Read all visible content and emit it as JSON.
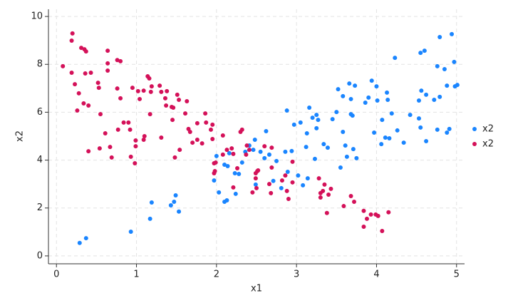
{
  "chart_data": {
    "type": "scatter",
    "xlabel": "x1",
    "ylabel": "x2",
    "xlim": [
      -0.1,
      5.1
    ],
    "ylim": [
      -0.33,
      10.3
    ],
    "xticks": [
      0,
      1,
      2,
      3,
      4,
      5
    ],
    "yticks": [
      0,
      2,
      4,
      6,
      8,
      10
    ],
    "grid": true,
    "legend": "right",
    "series": [
      {
        "name": "x2",
        "color": "#1a85ff",
        "x": [
          0.29,
          0.37,
          0.93,
          1.17,
          1.19,
          1.43,
          1.47,
          1.49,
          1.53,
          1.97,
          2.0,
          2.03,
          2.1,
          2.13,
          2.1,
          2.14,
          2.16,
          2.23,
          2.24,
          2.28,
          2.32,
          2.36,
          2.41,
          2.46,
          2.48,
          2.49,
          2.55,
          2.6,
          2.62,
          2.66,
          2.71,
          2.75,
          2.81,
          2.86,
          2.88,
          2.89,
          2.94,
          2.97,
          3.02,
          3.05,
          3.08,
          3.12,
          3.13,
          3.14,
          3.16,
          3.2,
          3.23,
          3.25,
          3.27,
          3.25,
          3.34,
          3.39,
          3.45,
          3.5,
          3.52,
          3.55,
          3.58,
          3.58,
          3.61,
          3.63,
          3.66,
          3.68,
          3.68,
          3.7,
          3.71,
          3.73,
          3.75,
          3.86,
          3.9,
          3.94,
          3.97,
          4.0,
          4.01,
          4.06,
          4.07,
          4.11,
          4.13,
          4.14,
          4.16,
          4.19,
          4.23,
          4.26,
          4.34,
          4.42,
          4.53,
          4.53,
          4.55,
          4.56,
          4.55,
          4.6,
          4.62,
          4.62,
          4.72,
          4.76,
          4.76,
          4.79,
          4.79,
          4.85,
          4.88,
          4.88,
          4.91,
          4.94,
          4.97,
          4.98,
          5.01
        ],
        "values": [
          0.54,
          0.74,
          1.01,
          1.55,
          2.23,
          2.11,
          2.26,
          2.53,
          1.85,
          3.15,
          4.17,
          2.65,
          2.26,
          2.32,
          3.81,
          3.75,
          4.29,
          3.45,
          2.59,
          3.42,
          3.9,
          4.35,
          4.61,
          4.43,
          4.85,
          2.98,
          4.35,
          4.08,
          5.21,
          4.23,
          3.13,
          3.96,
          2.83,
          4.35,
          6.07,
          3.51,
          4.38,
          5.48,
          3.36,
          5.57,
          2.95,
          4.55,
          5.12,
          3.24,
          6.19,
          5.77,
          4.05,
          5.89,
          5.68,
          5.33,
          4.67,
          4.52,
          5.71,
          6.01,
          6.96,
          3.69,
          6.67,
          5.18,
          4.61,
          4.14,
          7.2,
          6.55,
          5.92,
          5.86,
          4.46,
          7.11,
          4.08,
          6.4,
          6.61,
          7.32,
          5.15,
          7.08,
          6.49,
          4.67,
          5.68,
          4.94,
          6.82,
          6.52,
          4.91,
          5.95,
          8.27,
          5.24,
          4.73,
          5.89,
          6.49,
          5.74,
          8.48,
          6.9,
          5.36,
          8.57,
          6.73,
          4.79,
          6.52,
          7.92,
          5.27,
          9.14,
          6.64,
          7.8,
          7.11,
          5.15,
          5.3,
          9.26,
          8.1,
          7.08,
          7.14
        ]
      },
      {
        "name": "x2",
        "color": "#d41159",
        "x": [
          0.08,
          0.19,
          0.19,
          0.2,
          0.23,
          0.28,
          0.26,
          0.31,
          0.35,
          0.36,
          0.34,
          0.37,
          0.4,
          0.4,
          0.43,
          0.52,
          0.53,
          0.54,
          0.55,
          0.61,
          0.64,
          0.64,
          0.64,
          0.67,
          0.69,
          0.76,
          0.8,
          0.76,
          0.77,
          0.8,
          0.84,
          0.93,
          0.9,
          0.92,
          0.95,
          0.98,
          0.99,
          0.99,
          1.02,
          1.04,
          1.09,
          1.09,
          1.1,
          1.14,
          1.16,
          1.17,
          1.18,
          1.19,
          1.29,
          1.31,
          1.31,
          1.36,
          1.37,
          1.38,
          1.44,
          1.46,
          1.45,
          1.48,
          1.51,
          1.53,
          1.54,
          1.61,
          1.63,
          1.65,
          1.67,
          1.7,
          1.76,
          1.76,
          1.82,
          1.86,
          1.87,
          1.93,
          1.95,
          1.95,
          1.97,
          1.98,
          1.97,
          1.99,
          2.08,
          2.08,
          2.13,
          2.19,
          2.21,
          2.21,
          2.26,
          2.3,
          2.32,
          2.37,
          2.38,
          2.41,
          2.45,
          2.49,
          2.49,
          2.5,
          2.51,
          2.52,
          2.6,
          2.66,
          2.68,
          2.69,
          2.69,
          2.82,
          2.86,
          2.88,
          2.9,
          2.95,
          2.95,
          3.28,
          3.3,
          3.3,
          3.33,
          3.35,
          3.38,
          3.4,
          3.43,
          3.59,
          3.68,
          3.72,
          3.84,
          3.84,
          3.88,
          3.93,
          3.99,
          4.02,
          4.07,
          4.15
        ],
        "values": [
          7.92,
          7.65,
          8.99,
          9.29,
          7.17,
          6.79,
          6.07,
          8.69,
          8.63,
          7.62,
          6.37,
          8.54,
          6.28,
          4.37,
          7.65,
          7.23,
          7.02,
          4.49,
          5.92,
          5.12,
          7.74,
          8.04,
          8.57,
          4.55,
          4.11,
          8.18,
          8.13,
          6.99,
          5.27,
          6.58,
          5.57,
          4.14,
          5.57,
          5.27,
          7.02,
          3.87,
          4.58,
          4.82,
          6.88,
          6.55,
          4.85,
          6.9,
          5.0,
          7.5,
          7.41,
          5.92,
          6.85,
          7.08,
          7.11,
          4.94,
          6.85,
          6.58,
          6.28,
          6.88,
          6.22,
          6.19,
          5.68,
          4.11,
          6.73,
          6.52,
          4.43,
          5.95,
          6.46,
          5.3,
          5.18,
          4.73,
          5.54,
          4.85,
          4.7,
          5.95,
          5.57,
          5.27,
          4.88,
          5.48,
          3.87,
          3.54,
          3.45,
          3.9,
          5.03,
          4.23,
          4.43,
          4.49,
          2.86,
          4.26,
          3.66,
          5.18,
          5.27,
          4.23,
          4.61,
          4.43,
          2.65,
          3.45,
          3.24,
          2.83,
          3.54,
          3.57,
          4.58,
          3.0,
          2.62,
          3.69,
          4.52,
          3.15,
          3.36,
          2.71,
          2.38,
          3.07,
          3.93,
          3.24,
          2.62,
          2.44,
          2.71,
          2.98,
          1.79,
          2.56,
          2.8,
          2.08,
          2.5,
          2.26,
          1.22,
          1.88,
          1.55,
          1.73,
          1.73,
          1.67,
          1.04,
          1.82
        ]
      }
    ]
  }
}
